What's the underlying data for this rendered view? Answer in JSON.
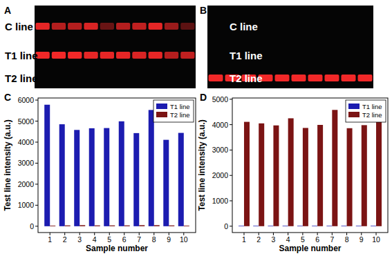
{
  "chart_data": [
    {
      "type": "bar",
      "title": "C",
      "x_label": "Sample number",
      "y_label": "Test line intensity (a.u.)",
      "categories": [
        1,
        2,
        3,
        4,
        5,
        6,
        7,
        8,
        9,
        10
      ],
      "series": [
        {
          "name": "T1 line",
          "color": "#1c1cb0",
          "values": [
            5780,
            4850,
            4580,
            4660,
            4670,
            4990,
            4430,
            5530,
            4110,
            4440
          ]
        },
        {
          "name": "T2 line",
          "color": "#7b1414",
          "values": [
            30,
            40,
            50,
            40,
            40,
            40,
            50,
            50,
            40,
            30
          ]
        }
      ],
      "ylim": [
        -300,
        6100
      ],
      "yticks": [
        0,
        1000,
        2000,
        3000,
        4000,
        5000,
        6000
      ],
      "legend": "upper right"
    },
    {
      "type": "bar",
      "title": "D",
      "x_label": "Sample number",
      "y_label": "Test line intensity (a.u.)",
      "categories": [
        1,
        2,
        3,
        4,
        5,
        6,
        7,
        8,
        9,
        10
      ],
      "series": [
        {
          "name": "T1 line",
          "color": "#1c1cb0",
          "values": [
            20,
            20,
            20,
            20,
            20,
            20,
            20,
            20,
            20,
            20
          ]
        },
        {
          "name": "T2 line",
          "color": "#7b1414",
          "values": [
            4110,
            4050,
            3970,
            4250,
            3870,
            3990,
            4580,
            3860,
            3980,
            4100
          ]
        }
      ],
      "ylim": [
        -250,
        5050
      ],
      "yticks": [
        0,
        1000,
        2000,
        3000,
        4000,
        5000
      ],
      "legend": "upper right"
    }
  ],
  "strips": [
    {
      "label": "A",
      "line_labels": [
        "C line",
        "T1 line",
        "T2 line"
      ],
      "bands": [
        [
          0.9,
          0.7,
          0.7,
          0.85,
          0.4,
          0.7,
          0.75,
          0.9,
          0.6,
          0.35
        ],
        [
          0.95,
          0.95,
          0.95,
          0.9,
          0.9,
          0.9,
          0.85,
          0.9,
          0.7,
          0.75
        ],
        [
          0,
          0,
          0,
          0,
          0,
          0,
          0,
          0,
          0,
          0
        ]
      ]
    },
    {
      "label": "B",
      "line_labels": [
        "C line",
        "T1 line",
        "T2 line"
      ],
      "bands": [
        [
          0,
          0,
          0,
          0,
          0,
          0,
          0,
          0,
          0,
          0
        ],
        [
          0,
          0,
          0,
          0,
          0,
          0,
          0,
          0,
          0,
          0
        ],
        [
          0.95,
          0.95,
          0.95,
          0.95,
          0.95,
          0.95,
          0.95,
          0.95,
          0.95,
          0.95
        ]
      ]
    }
  ]
}
